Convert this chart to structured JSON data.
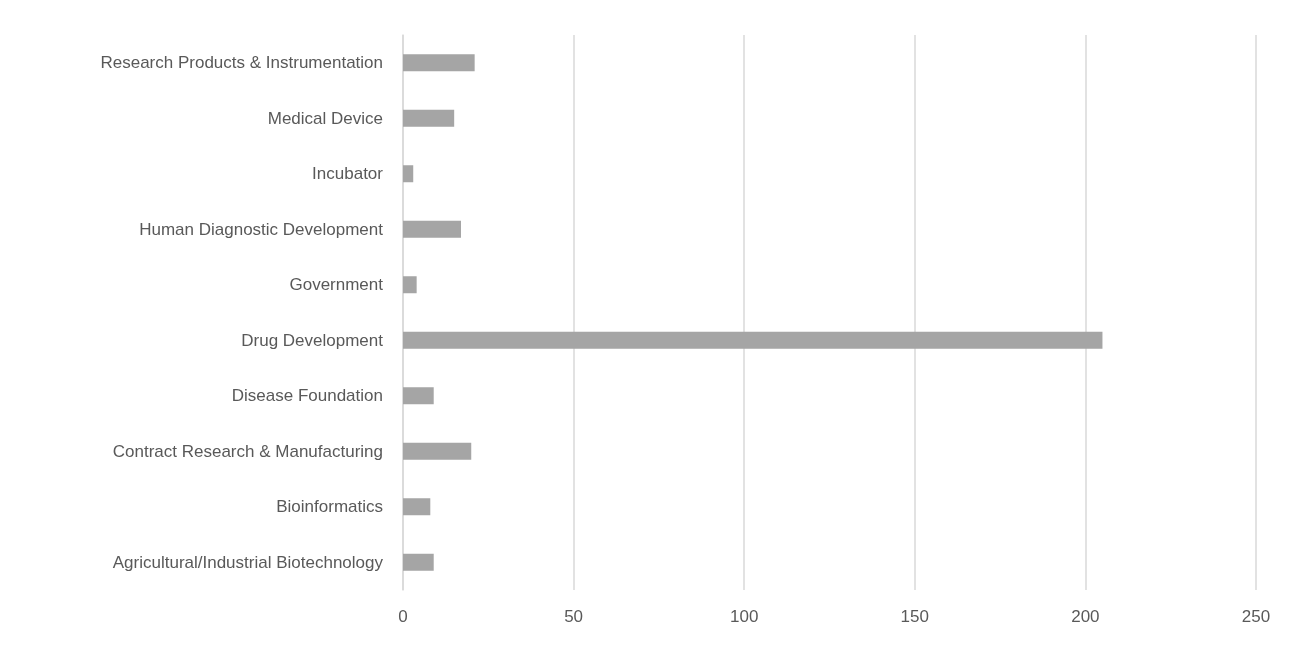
{
  "chart_data": {
    "type": "bar",
    "orientation": "horizontal",
    "categories": [
      "Research Products & Instrumentation",
      "Medical Device",
      "Incubator",
      "Human Diagnostic Development",
      "Government",
      "Drug Development",
      "Disease Foundation",
      "Contract Research & Manufacturing",
      "Bioinformatics",
      "Agricultural/Industrial Biotechnology"
    ],
    "values": [
      21,
      15,
      3,
      17,
      4,
      205,
      9,
      20,
      8,
      9
    ],
    "color": "#a5a5a5",
    "xlim": [
      0,
      250
    ],
    "xticks": [
      0,
      50,
      100,
      150,
      200,
      250
    ],
    "grid": "x"
  }
}
